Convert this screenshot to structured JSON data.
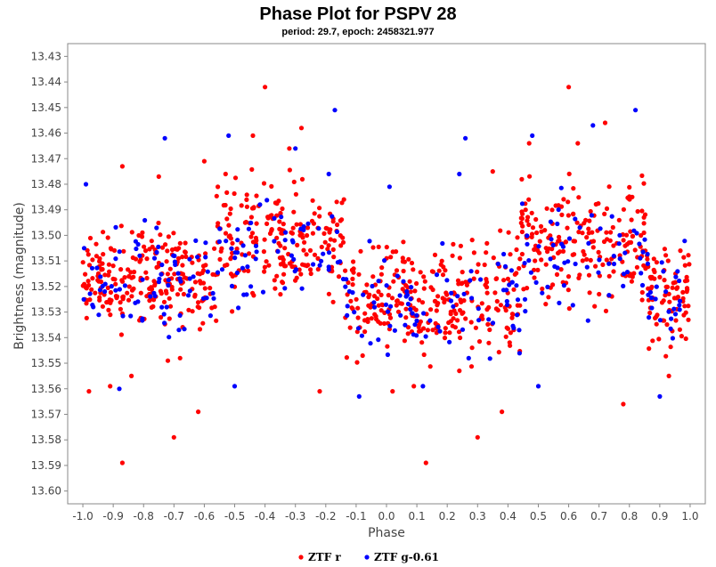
{
  "chart_data": {
    "type": "scatter",
    "title": "Phase Plot for PSPV 28",
    "subtitle": "period: 29.7, epoch: 2458321.977",
    "xlabel": "Phase",
    "ylabel": "Brightness (magnitude)",
    "xlim": [
      -1.05,
      1.05
    ],
    "ylim": [
      13.605,
      13.425
    ],
    "y_inverted": true,
    "grid": false,
    "legend_position": "bottom-center",
    "x_ticks": [
      -1.0,
      -0.9,
      -0.8,
      -0.7,
      -0.6,
      -0.5,
      -0.4,
      -0.3,
      -0.2,
      -0.1,
      0.0,
      0.1,
      0.2,
      0.3,
      0.4,
      0.5,
      0.6,
      0.7,
      0.8,
      0.9,
      1.0
    ],
    "x_tick_labels": [
      "-1.0",
      "-0.9",
      "-0.8",
      "-0.7",
      "-0.6",
      "-0.5",
      "-0.4",
      "-0.3",
      "-0.2",
      "-0.1",
      "0.0",
      "0.1",
      "0.2",
      "0.3",
      "0.4",
      "0.5",
      "0.6",
      "0.7",
      "0.8",
      "0.9",
      "1.0"
    ],
    "y_ticks": [
      13.43,
      13.44,
      13.45,
      13.46,
      13.47,
      13.48,
      13.49,
      13.5,
      13.51,
      13.52,
      13.53,
      13.54,
      13.55,
      13.56,
      13.57,
      13.58,
      13.59,
      13.6
    ],
    "y_tick_labels": [
      "13.43",
      "13.44",
      "13.45",
      "13.46",
      "13.47",
      "13.48",
      "13.49",
      "13.50",
      "13.51",
      "13.52",
      "13.53",
      "13.54",
      "13.55",
      "13.56",
      "13.57",
      "13.58",
      "13.59",
      "13.60"
    ],
    "series": [
      {
        "name": "ZTF r",
        "color": "#ff0000",
        "points": [
          [
            -0.6,
            13.471
          ],
          [
            -0.4,
            13.442
          ],
          [
            -0.28,
            13.458
          ],
          [
            -0.44,
            13.461
          ],
          [
            0.6,
            13.442
          ],
          [
            0.72,
            13.456
          ],
          [
            -0.87,
            13.473
          ],
          [
            -0.75,
            13.477
          ],
          [
            -0.53,
            13.476
          ],
          [
            -0.32,
            13.466
          ],
          [
            0.47,
            13.464
          ],
          [
            0.63,
            13.464
          ],
          [
            0.35,
            13.475
          ],
          [
            -0.87,
            13.589
          ],
          [
            0.13,
            13.589
          ],
          [
            -0.7,
            13.579
          ],
          [
            0.3,
            13.579
          ],
          [
            -0.62,
            13.569
          ],
          [
            0.38,
            13.569
          ],
          [
            -0.22,
            13.561
          ],
          [
            0.78,
            13.566
          ],
          [
            -0.98,
            13.561
          ],
          [
            0.02,
            13.561
          ],
          [
            -0.91,
            13.559
          ],
          [
            0.09,
            13.559
          ],
          [
            -0.72,
            13.549
          ],
          [
            -0.68,
            13.548
          ],
          [
            0.24,
            13.553
          ],
          [
            -0.84,
            13.555
          ],
          [
            0.93,
            13.555
          ]
        ],
        "clusters": [
          {
            "x_range": [
              -1.0,
              -0.56
            ],
            "y_range": [
              13.49,
              13.545
            ],
            "count": 230
          },
          {
            "x_range": [
              -0.56,
              -0.14
            ],
            "y_range": [
              13.47,
              13.535
            ],
            "count": 200
          },
          {
            "x_range": [
              -0.14,
              0.44
            ],
            "y_range": [
              13.495,
              13.555
            ],
            "count": 280
          },
          {
            "x_range": [
              0.44,
              0.86
            ],
            "y_range": [
              13.47,
              13.535
            ],
            "count": 200
          },
          {
            "x_range": [
              0.86,
              1.0
            ],
            "y_range": [
              13.495,
              13.555
            ],
            "count": 80
          }
        ]
      },
      {
        "name": "ZTF g-0.61",
        "color": "#0000ff",
        "points": [
          [
            -0.99,
            13.48
          ],
          [
            -0.17,
            13.451
          ],
          [
            0.82,
            13.451
          ],
          [
            -0.73,
            13.462
          ],
          [
            0.26,
            13.462
          ],
          [
            -0.52,
            13.461
          ],
          [
            0.48,
            13.461
          ],
          [
            -0.3,
            13.466
          ],
          [
            0.68,
            13.457
          ],
          [
            -0.19,
            13.476
          ],
          [
            0.9,
            13.563
          ],
          [
            -0.09,
            13.563
          ],
          [
            0.12,
            13.559
          ],
          [
            -0.88,
            13.56
          ],
          [
            0.5,
            13.559
          ],
          [
            -0.5,
            13.559
          ],
          [
            0.01,
            13.481
          ],
          [
            0.24,
            13.476
          ]
        ],
        "clusters": [
          {
            "x_range": [
              -1.0,
              -0.56
            ],
            "y_range": [
              13.49,
              13.545
            ],
            "count": 75
          },
          {
            "x_range": [
              -0.56,
              -0.14
            ],
            "y_range": [
              13.475,
              13.54
            ],
            "count": 60
          },
          {
            "x_range": [
              -0.14,
              0.44
            ],
            "y_range": [
              13.495,
              13.555
            ],
            "count": 85
          },
          {
            "x_range": [
              0.44,
              0.86
            ],
            "y_range": [
              13.475,
              13.54
            ],
            "count": 60
          },
          {
            "x_range": [
              0.86,
              1.0
            ],
            "y_range": [
              13.495,
              13.555
            ],
            "count": 25
          }
        ]
      }
    ]
  }
}
